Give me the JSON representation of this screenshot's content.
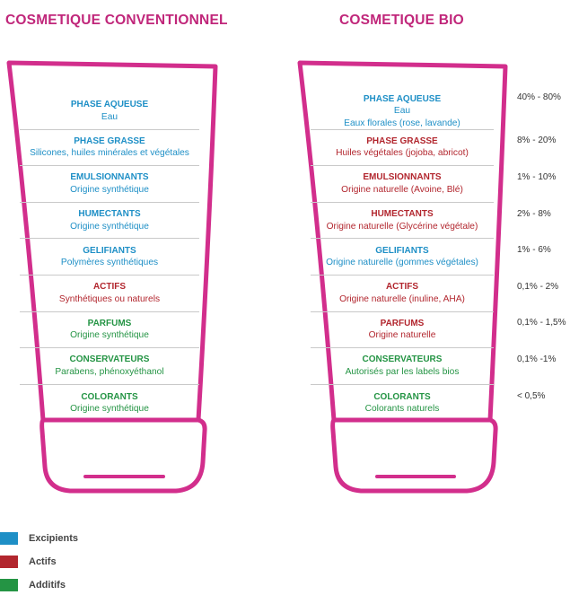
{
  "titles": {
    "left": "COSMETIQUE CONVENTIONNEL",
    "right": "COSMETIQUE BIO"
  },
  "colors": {
    "tube_outline": "#d22e8c",
    "title": "#c0267a",
    "excipients": "#1e8fc6",
    "actifs": "#b2262e",
    "additifs": "#249444"
  },
  "conventionnel": [
    {
      "name": "PHASE AQUEUSE",
      "desc": "Eau",
      "category": "excipients"
    },
    {
      "name": "PHASE GRASSE",
      "desc": "Silicones, huiles minérales et végétales",
      "category": "excipients"
    },
    {
      "name": "EMULSIONNANTS",
      "desc": "Origine synthétique",
      "category": "excipients"
    },
    {
      "name": "HUMECTANTS",
      "desc": "Origine synthétique",
      "category": "excipients"
    },
    {
      "name": "GELIFIANTS",
      "desc": "Polymères synthétiques",
      "category": "excipients"
    },
    {
      "name": "ACTIFS",
      "desc": "Synthétiques ou naturels",
      "category": "actifs"
    },
    {
      "name": "PARFUMS",
      "desc": "Origine synthétique",
      "category": "additifs"
    },
    {
      "name": "CONSERVATEURS",
      "desc": "Parabens, phénoxyéthanol",
      "category": "additifs"
    },
    {
      "name": "COLORANTS",
      "desc": "Origine synthétique",
      "category": "additifs"
    }
  ],
  "bio": [
    {
      "name": "PHASE AQUEUSE",
      "desc": "Eau",
      "desc2": "Eaux florales (rose, lavande)",
      "category": "excipients",
      "percent": "40% - 80%"
    },
    {
      "name": "PHASE GRASSE",
      "desc": "Huiles végétales (jojoba, abricot)",
      "category": "actifs",
      "percent": "8% - 20%"
    },
    {
      "name": "EMULSIONNANTS",
      "desc": "Origine naturelle (Avoine, Blé)",
      "category": "actifs",
      "percent": "1% - 10%"
    },
    {
      "name": "HUMECTANTS",
      "desc": "Origine naturelle (Glycérine végétale)",
      "category": "actifs",
      "percent": "2% - 8%"
    },
    {
      "name": "GELIFIANTS",
      "desc": "Origine naturelle (gommes végétales)",
      "category": "excipients",
      "percent": "1% - 6%"
    },
    {
      "name": "ACTIFS",
      "desc": "Origine naturelle (inuline, AHA)",
      "category": "actifs",
      "percent": "0,1% - 2%"
    },
    {
      "name": "PARFUMS",
      "desc": "Origine naturelle",
      "category": "actifs",
      "percent": "0,1% - 1,5%"
    },
    {
      "name": "CONSERVATEURS",
      "desc": "Autorisés par les labels bios",
      "category": "additifs",
      "percent": "0,1% -1%"
    },
    {
      "name": "COLORANTS",
      "desc": "Colorants naturels",
      "category": "additifs",
      "percent": "< 0,5%"
    }
  ],
  "legend": [
    {
      "label": "Excipients",
      "category": "excipients"
    },
    {
      "label": "Actifs",
      "category": "actifs"
    },
    {
      "label": "Additifs",
      "category": "additifs"
    }
  ]
}
